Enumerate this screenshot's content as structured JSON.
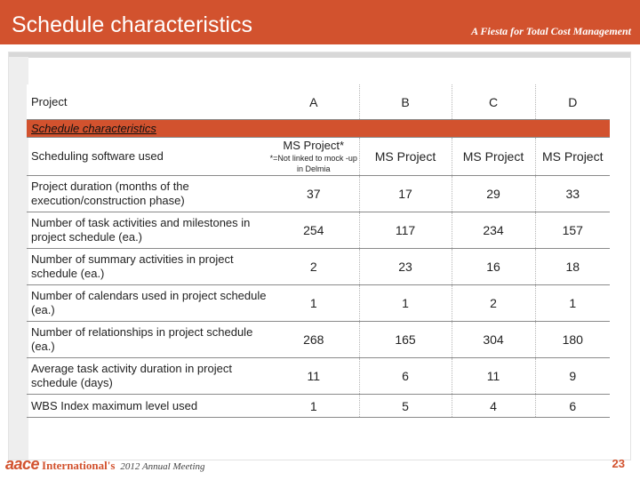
{
  "banner": {
    "title": "Schedule characteristics",
    "tagline": "A Fiesta for Total Cost Management"
  },
  "table": {
    "header": {
      "label": "Project",
      "cols": [
        "A",
        "B",
        "C",
        "D"
      ]
    },
    "section_label": "Schedule characteristics",
    "software_row": {
      "label": "Scheduling software used",
      "a_main": "MS Project*",
      "a_note": "*=Not linked to mock -up in Delmia",
      "b": "MS Project",
      "c": "MS Project",
      "d": "MS Project"
    },
    "rows": [
      {
        "label": "Project duration (months of the execution/construction phase)",
        "values": [
          "37",
          "17",
          "29",
          "33"
        ]
      },
      {
        "label": "Number of task activities and milestones in project schedule (ea.)",
        "values": [
          "254",
          "117",
          "234",
          "157"
        ]
      },
      {
        "label": "Number of summary activities in project schedule (ea.)",
        "values": [
          "2",
          "23",
          "16",
          "18"
        ]
      },
      {
        "label": "Number of calendars used in project schedule (ea.)",
        "values": [
          "1",
          "1",
          "2",
          "1"
        ]
      },
      {
        "label": "Number of relationships in project schedule (ea.)",
        "values": [
          "268",
          "165",
          "304",
          "180"
        ]
      },
      {
        "label": "Average task activity duration in project schedule (days)",
        "values": [
          "11",
          "6",
          "11",
          "9"
        ]
      },
      {
        "label": "WBS Index maximum level used",
        "values": [
          "1",
          "5",
          "4",
          "6"
        ]
      }
    ]
  },
  "footer": {
    "logo_text": "aace",
    "org_text": "International's",
    "meeting_text": "2012 Annual Meeting",
    "page_number": "23"
  },
  "colors": {
    "accent": "#d2522e"
  }
}
